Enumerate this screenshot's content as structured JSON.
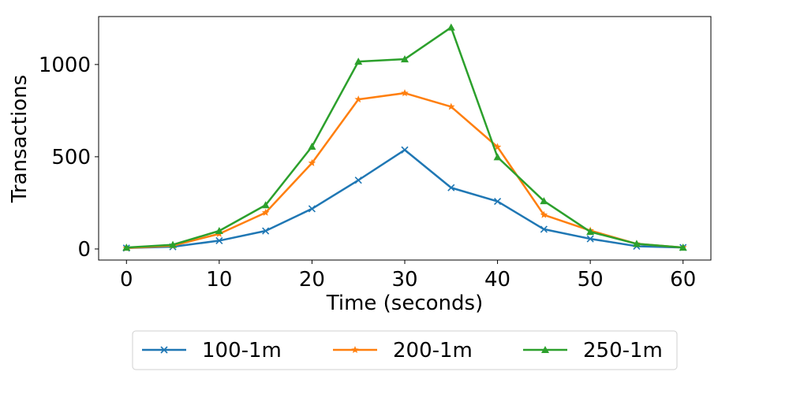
{
  "chart_data": {
    "type": "line",
    "title": "",
    "xlabel": "Time (seconds)",
    "ylabel": "Transactions",
    "xlim": [
      -3,
      63
    ],
    "ylim": [
      -60,
      1260
    ],
    "xticks": [
      0,
      10,
      20,
      30,
      40,
      50,
      60
    ],
    "yticks": [
      0,
      500,
      1000
    ],
    "grid": false,
    "legend_position": "bottom-center",
    "x": [
      0,
      5,
      10,
      15,
      20,
      25,
      30,
      35,
      40,
      45,
      50,
      55,
      60
    ],
    "series": [
      {
        "name": "100-1m",
        "color": "#1f77b4",
        "marker": "x",
        "values": [
          5,
          12,
          45,
          98,
          218,
          373,
          537,
          332,
          258,
          107,
          55,
          15,
          8
        ]
      },
      {
        "name": "200-1m",
        "color": "#ff7f0e",
        "marker": "star",
        "values": [
          5,
          18,
          82,
          197,
          466,
          811,
          845,
          771,
          553,
          185,
          100,
          28,
          8
        ]
      },
      {
        "name": "250-1m",
        "color": "#2ca02c",
        "marker": "triangle",
        "values": [
          8,
          23,
          98,
          238,
          555,
          1016,
          1029,
          1201,
          498,
          260,
          93,
          28,
          8
        ]
      }
    ]
  }
}
